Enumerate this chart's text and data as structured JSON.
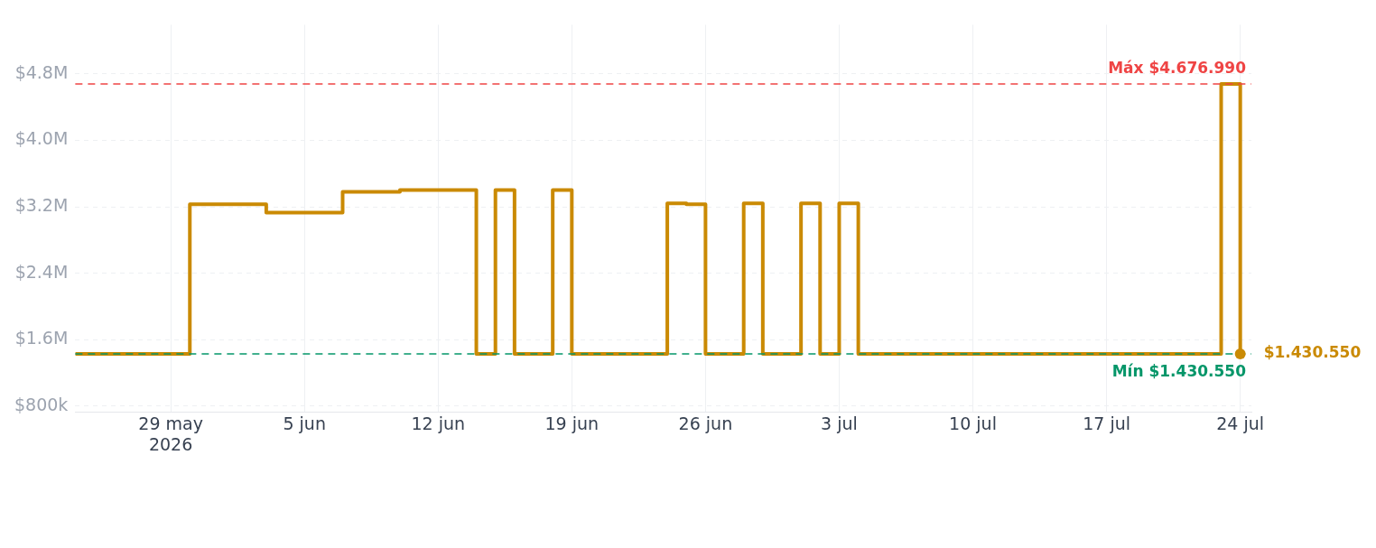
{
  "chart_data": {
    "type": "step",
    "x": [
      "2026-05-24",
      "2026-05-30",
      "2026-06-03",
      "2026-06-07",
      "2026-06-10",
      "2026-06-14",
      "2026-06-15",
      "2026-06-16",
      "2026-06-18",
      "2026-06-19",
      "2026-06-24",
      "2026-06-25",
      "2026-06-26",
      "2026-06-28",
      "2026-06-29",
      "2026-07-01",
      "2026-07-02",
      "2026-07-03",
      "2026-07-04",
      "2026-07-23",
      "2026-07-24"
    ],
    "series": [
      {
        "color": "#ca8a04",
        "values": [
          1430550,
          3230000,
          3130000,
          3380000,
          3400000,
          1430550,
          3400000,
          1430550,
          3400000,
          1430550,
          3240000,
          3230000,
          1430550,
          3240000,
          1430550,
          3240000,
          1430550,
          3240000,
          1430550,
          4676990,
          1430550
        ],
        "value_labels": [
          null,
          null,
          null,
          null,
          null,
          null,
          null,
          null,
          null,
          null,
          null,
          null,
          null,
          null,
          null,
          null,
          null,
          null,
          null,
          null,
          "$1.430.550"
        ]
      }
    ],
    "xlim": [
      "2026-05-24",
      "2026-07-24T14:00"
    ],
    "xticks": [
      {
        "value": "2026-05-29",
        "label": "29 may\n2026"
      },
      {
        "value": "2026-06-05",
        "label": "5 jun"
      },
      {
        "value": "2026-06-12",
        "label": "12 jun"
      },
      {
        "value": "2026-06-19",
        "label": "19 jun"
      },
      {
        "value": "2026-06-26",
        "label": "26 jun"
      },
      {
        "value": "2026-07-03",
        "label": "3 jul"
      },
      {
        "value": "2026-07-10",
        "label": "10 jul"
      },
      {
        "value": "2026-07-17",
        "label": "17 jul"
      },
      {
        "value": "2026-07-24",
        "label": "24 jul"
      }
    ],
    "ylim": [
      730000,
      5390000
    ],
    "yticks": [
      {
        "value": 800000,
        "label": "$800k"
      },
      {
        "value": 1600000,
        "label": "$1.6M"
      },
      {
        "value": 2400000,
        "label": "$2.4M"
      },
      {
        "value": 3200000,
        "label": "$3.2M"
      },
      {
        "value": 4000000,
        "label": "$4.0M"
      },
      {
        "value": 4800000,
        "label": "$4.8M"
      }
    ],
    "ref_lines": [
      {
        "axis": "y",
        "value": 4676990,
        "label": "Máx $4.676.990",
        "color": "#ef4444",
        "line_style": "dashed"
      },
      {
        "axis": "y",
        "value": 1430550,
        "label": "Mín $1.430.550",
        "color": "#059669",
        "line_style": "dashed"
      }
    ],
    "grid": true,
    "line_style": "solid",
    "legend": false
  }
}
